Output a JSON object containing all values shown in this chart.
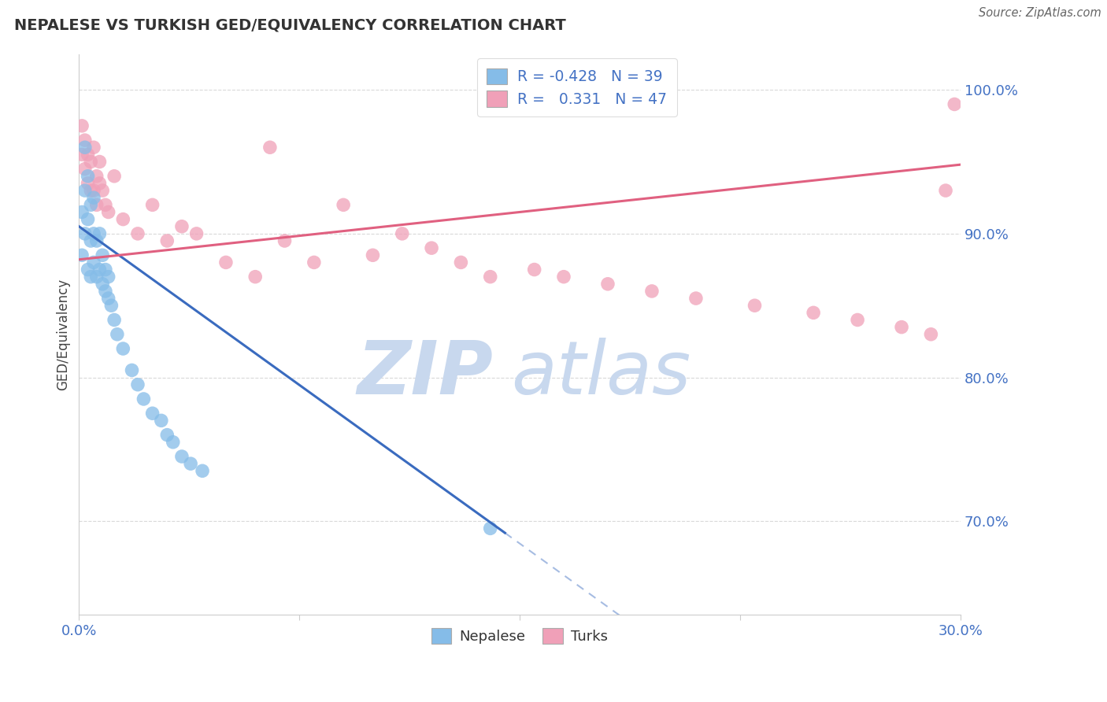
{
  "title": "NEPALESE VS TURKISH GED/EQUIVALENCY CORRELATION CHART",
  "source": "Source: ZipAtlas.com",
  "ylabel": "GED/Equivalency",
  "xlim": [
    0.0,
    0.3
  ],
  "ylim": [
    0.635,
    1.025
  ],
  "xticks": [
    0.0,
    0.075,
    0.15,
    0.225,
    0.3
  ],
  "xtick_labels": [
    "0.0%",
    "",
    "",
    "",
    "30.0%"
  ],
  "yticks": [
    0.7,
    0.8,
    0.9,
    1.0
  ],
  "ytick_labels": [
    "70.0%",
    "80.0%",
    "90.0%",
    "100.0%"
  ],
  "nepalese_color": "#85bce8",
  "turks_color": "#f0a0b8",
  "nepalese_line_color": "#3a6bbf",
  "turks_line_color": "#e06080",
  "watermark_zip": "ZIP",
  "watermark_atlas": "atlas",
  "watermark_color_zip": "#c8d8ee",
  "watermark_color_atlas": "#c8d8ee",
  "background_color": "#ffffff",
  "grid_color": "#d0d0d0",
  "nepalese_x": [
    0.001,
    0.001,
    0.002,
    0.002,
    0.002,
    0.003,
    0.003,
    0.003,
    0.004,
    0.004,
    0.004,
    0.005,
    0.005,
    0.005,
    0.006,
    0.006,
    0.007,
    0.007,
    0.008,
    0.008,
    0.009,
    0.009,
    0.01,
    0.01,
    0.011,
    0.012,
    0.013,
    0.015,
    0.018,
    0.02,
    0.022,
    0.025,
    0.028,
    0.03,
    0.032,
    0.035,
    0.038,
    0.042,
    0.14
  ],
  "nepalese_y": [
    0.885,
    0.915,
    0.9,
    0.93,
    0.96,
    0.875,
    0.91,
    0.94,
    0.87,
    0.895,
    0.92,
    0.88,
    0.9,
    0.925,
    0.87,
    0.895,
    0.875,
    0.9,
    0.865,
    0.885,
    0.86,
    0.875,
    0.855,
    0.87,
    0.85,
    0.84,
    0.83,
    0.82,
    0.805,
    0.795,
    0.785,
    0.775,
    0.77,
    0.76,
    0.755,
    0.745,
    0.74,
    0.735,
    0.695
  ],
  "turks_x": [
    0.001,
    0.001,
    0.002,
    0.002,
    0.003,
    0.003,
    0.004,
    0.004,
    0.005,
    0.005,
    0.006,
    0.006,
    0.007,
    0.007,
    0.008,
    0.009,
    0.01,
    0.012,
    0.015,
    0.02,
    0.025,
    0.03,
    0.035,
    0.04,
    0.05,
    0.06,
    0.065,
    0.07,
    0.08,
    0.09,
    0.1,
    0.11,
    0.12,
    0.13,
    0.14,
    0.155,
    0.165,
    0.18,
    0.195,
    0.21,
    0.23,
    0.25,
    0.265,
    0.28,
    0.29,
    0.295,
    0.298
  ],
  "turks_y": [
    0.955,
    0.975,
    0.945,
    0.965,
    0.935,
    0.955,
    0.93,
    0.95,
    0.93,
    0.96,
    0.92,
    0.94,
    0.935,
    0.95,
    0.93,
    0.92,
    0.915,
    0.94,
    0.91,
    0.9,
    0.92,
    0.895,
    0.905,
    0.9,
    0.88,
    0.87,
    0.96,
    0.895,
    0.88,
    0.92,
    0.885,
    0.9,
    0.89,
    0.88,
    0.87,
    0.875,
    0.87,
    0.865,
    0.86,
    0.855,
    0.85,
    0.845,
    0.84,
    0.835,
    0.83,
    0.93,
    0.99
  ],
  "nep_line_x0": 0.0,
  "nep_line_y0": 0.905,
  "nep_line_slope": -1.47,
  "nep_line_solid_end": 0.145,
  "turk_line_x0": 0.0,
  "turk_line_y0": 0.882,
  "turk_line_slope": 0.22
}
